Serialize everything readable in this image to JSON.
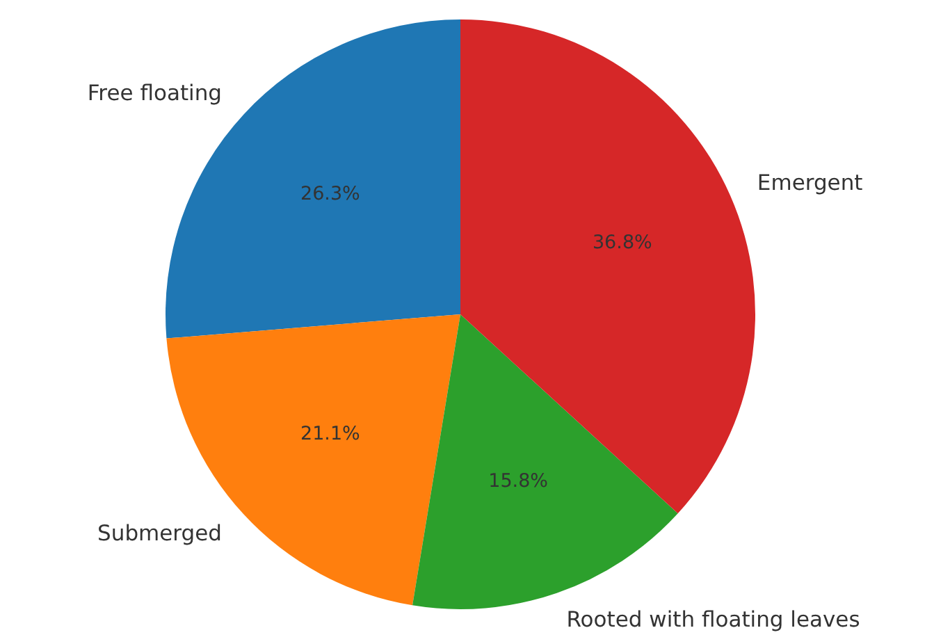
{
  "chart_data": {
    "type": "pie",
    "categories": [
      "Free floating",
      "Submerged",
      "Rooted with floating leaves",
      "Emergent"
    ],
    "values": [
      26.3,
      21.1,
      15.8,
      36.8
    ],
    "colors": [
      "#1f77b4",
      "#ff7f0e",
      "#2ca02c",
      "#d62728"
    ],
    "value_labels": [
      "26.3%",
      "21.1%",
      "15.8%",
      "36.8%"
    ]
  }
}
